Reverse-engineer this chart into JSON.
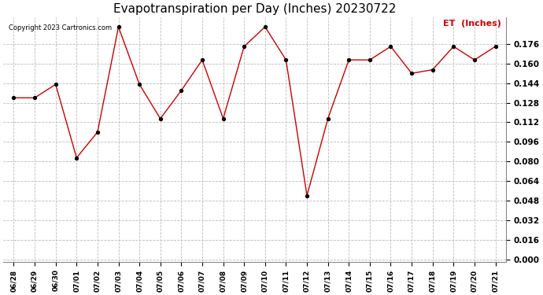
{
  "title": "Evapotranspiration per Day (Inches) 20230722",
  "copyright_text": "Copyright 2023 Cartronics.com",
  "legend_label": "ET  (Inches)",
  "dates": [
    "06/28",
    "06/29",
    "06/30",
    "07/01",
    "07/02",
    "07/03",
    "07/04",
    "07/05",
    "07/06",
    "07/07",
    "07/08",
    "07/09",
    "07/10",
    "07/11",
    "07/12",
    "07/13",
    "07/14",
    "07/15",
    "07/16",
    "07/17",
    "07/18",
    "07/19",
    "07/20",
    "07/21"
  ],
  "values": [
    0.132,
    0.132,
    0.143,
    0.083,
    0.104,
    0.19,
    0.143,
    0.115,
    0.138,
    0.163,
    0.115,
    0.174,
    0.19,
    0.163,
    0.052,
    0.115,
    0.163,
    0.163,
    0.174,
    0.152,
    0.155,
    0.174,
    0.163,
    0.174
  ],
  "line_color": "#cc0000",
  "marker_color": "#000000",
  "grid_color": "#bbbbbb",
  "background_color": "#ffffff",
  "title_fontsize": 11,
  "ytick_min": 0.0,
  "ytick_max": 0.19,
  "ytick_step": 0.016,
  "copyright_fontsize": 6,
  "legend_fontsize": 8,
  "tick_fontsize": 7.5,
  "xtick_fontsize": 6.5
}
